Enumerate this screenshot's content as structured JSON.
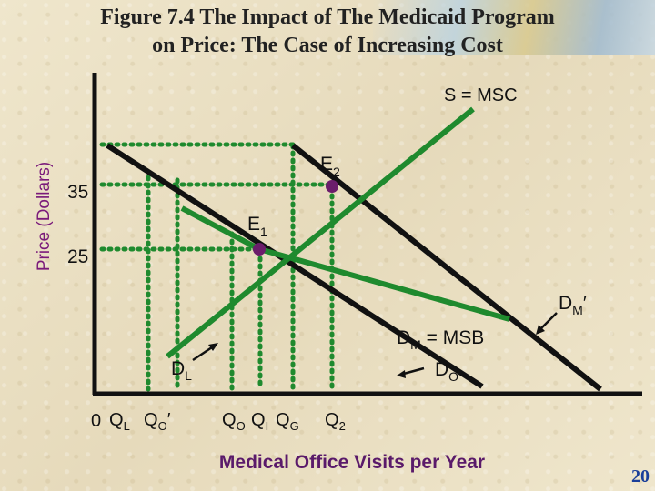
{
  "title": {
    "line1": "Figure 7.4 The Impact of The Medicaid Program",
    "line2": "on Price: The Case of Increasing Cost"
  },
  "y_axis_label": "Price (Dollars)",
  "x_axis_label": "Medical Office Visits per Year",
  "origin_label": "0",
  "price_labels": {
    "p35": "35",
    "p25": "25"
  },
  "curve_labels": {
    "supply": "S = MSC",
    "dm": {
      "main": "D",
      "sub": "M",
      "rest": " = MSB"
    },
    "do": {
      "main": "D",
      "sub": "O"
    },
    "dl": {
      "main": "D",
      "sub": "L"
    },
    "dm_prime": {
      "main": "D",
      "sub": "M",
      "prime": "′"
    }
  },
  "points": {
    "e1": {
      "main": "E",
      "sub": "1"
    },
    "e2": {
      "main": "E",
      "sub": "2"
    }
  },
  "quantity_labels": {
    "ql": {
      "main": "Q",
      "sub": "L"
    },
    "qo_prime": {
      "main": "Q",
      "sub": "O",
      "prime": "′"
    },
    "qo": {
      "main": "Q",
      "sub": "O"
    },
    "qi": {
      "main": "Q",
      "sub": "I"
    },
    "qg": {
      "main": "Q",
      "sub": "G"
    },
    "q2": {
      "main": "Q",
      "sub": "2"
    }
  },
  "page_number": "20",
  "colors": {
    "supply_line": "#1f8a2e",
    "demand_line": "#111111",
    "dotted_line": "#1f8a2e",
    "point": "#6b1d6b",
    "axis_label": "#7a1a7a",
    "axis_title": "#5a1a6a",
    "page_number": "#1a3f9a"
  }
}
